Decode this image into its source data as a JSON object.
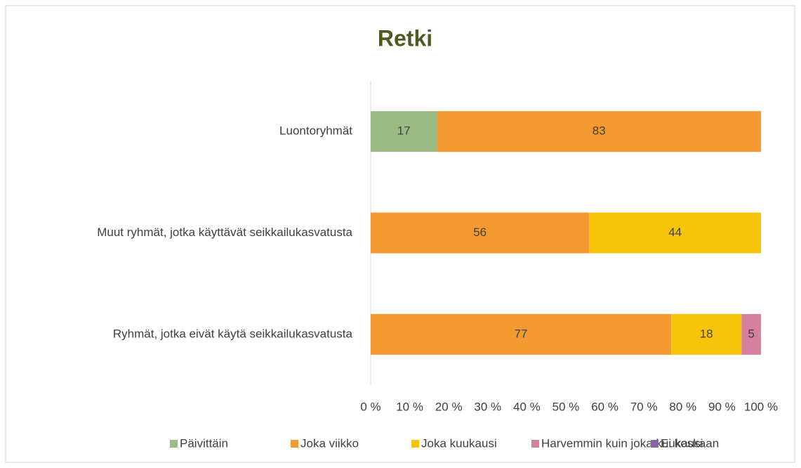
{
  "chart_data": {
    "type": "stacked_bar_horizontal",
    "title": "Retki",
    "categories": [
      "Luontoryhmät",
      "Muut ryhmät, jotka käyttävät seikkailukasvatusta",
      "Ryhmät, jotka eivät käytä seikkailukasvatusta"
    ],
    "series": [
      {
        "name": "Päivittäin",
        "color": "#9bbb85",
        "values": [
          17,
          0,
          0
        ]
      },
      {
        "name": "Joka viikko",
        "color": "#f49a32",
        "values": [
          83,
          56,
          77
        ]
      },
      {
        "name": "Joka kuukausi",
        "color": "#f7c40c",
        "values": [
          0,
          44,
          18
        ]
      },
      {
        "name": "Harvemmin kuin joka kuukausi",
        "color": "#d4809e",
        "values": [
          0,
          0,
          5
        ]
      },
      {
        "name": "Ei koskaan",
        "color": "#8466a8",
        "values": [
          0,
          0,
          0
        ]
      }
    ],
    "xlim": [
      0,
      100
    ],
    "xticks": [
      {
        "value": 0,
        "label": "0 %"
      },
      {
        "value": 10,
        "label": "10 %"
      },
      {
        "value": 20,
        "label": "20 %"
      },
      {
        "value": 30,
        "label": "30 %"
      },
      {
        "value": 40,
        "label": "40 %"
      },
      {
        "value": 50,
        "label": "50 %"
      },
      {
        "value": 60,
        "label": "60 %"
      },
      {
        "value": 70,
        "label": "70 %"
      },
      {
        "value": 80,
        "label": "80 %"
      },
      {
        "value": 90,
        "label": "90 %"
      },
      {
        "value": 100,
        "label": "100 %"
      }
    ],
    "legend": "bottom"
  }
}
